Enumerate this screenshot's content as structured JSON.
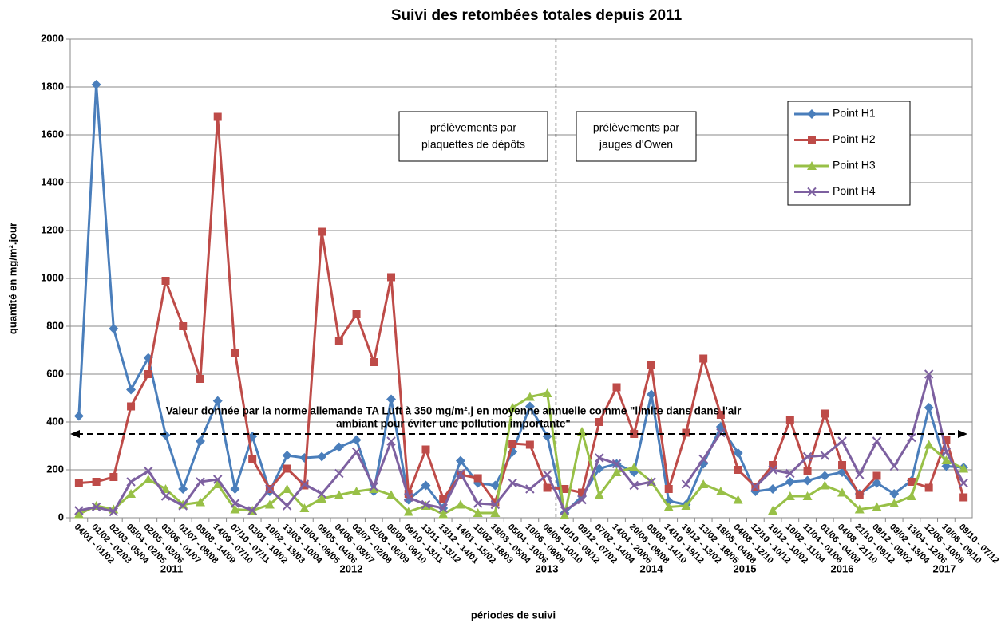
{
  "chart_data": {
    "type": "line",
    "title": "Suivi des retombées totales depuis 2011",
    "x_label": "périodes de suivi",
    "y_label": "quantité en mg/m².jour",
    "categories": [
      "04/01 - 01/02",
      "01/02 - 02/03",
      "02/03 - 05/04",
      "05/04 - 02/05",
      "02/05 - 03/06",
      "03/06 - 01/07",
      "01/07 - 08/08",
      "08/08 - 14/09",
      "14/09 - 07/10",
      "07/10 - 07/11",
      "03/01 - 10/02",
      "10/02 - 13/03",
      "13/03 - 10/04",
      "10/04 - 09/05",
      "09/05 - 04/06",
      "04/06 - 03/07",
      "03/07 - 02/08",
      "02/08 - 06/09",
      "06/09 - 09/10",
      "09/10 - 13/11",
      "13/11 - 13/12",
      "13/12 - 14/01",
      "14/01 - 15/02",
      "15/02 - 18/03",
      "18/03 - 05/04",
      "05/04 - 10/06",
      "10/06 - 09/08",
      "09/08 - 10/10",
      "10/10 - 09/12",
      "09/12 - 07/02",
      "07/02 - 14/04",
      "14/04 - 20/06",
      "20/06 - 08/08",
      "08/08 - 14/10",
      "14/10 - 19/12",
      "19/12 - 13/02",
      "13/02 - 18/05",
      "18/05 - 04/08",
      "04/08 - 12/10",
      "12/10 - 10/12",
      "10/12 - 10/02",
      "10/02 - 11/04",
      "11/04 - 01/06",
      "01/06 - 04/08",
      "04/08 - 21/10",
      "21/10 - 09/12",
      "09/12 - 09/02",
      "09/02 - 13/04",
      "13/04 - 12/06",
      "12/06 - 10/08",
      "10/08 - 09/10",
      "09/10 - 07/12"
    ],
    "series": [
      {
        "name": "Point H1",
        "color": "#4a7ebb",
        "marker": "diamond",
        "values": [
          425,
          1810,
          790,
          535,
          668,
          345,
          120,
          320,
          488,
          120,
          340,
          110,
          260,
          250,
          255,
          295,
          325,
          110,
          495,
          75,
          135,
          40,
          238,
          145,
          135,
          275,
          465,
          340,
          20,
          90,
          205,
          225,
          190,
          515,
          70,
          55,
          225,
          380,
          270,
          110,
          120,
          150,
          155,
          175,
          190,
          100,
          145,
          100,
          155,
          460,
          215,
          210
        ]
      },
      {
        "name": "Point H2",
        "color": "#be4b48",
        "marker": "square",
        "values": [
          145,
          150,
          170,
          465,
          600,
          990,
          800,
          580,
          1675,
          690,
          245,
          120,
          205,
          135,
          1195,
          740,
          850,
          650,
          1005,
          100,
          285,
          80,
          180,
          165,
          65,
          310,
          305,
          125,
          120,
          105,
          400,
          545,
          350,
          640,
          120,
          355,
          665,
          430,
          200,
          130,
          220,
          410,
          195,
          435,
          220,
          95,
          175,
          null,
          150,
          125,
          325,
          85
        ]
      },
      {
        "name": "Point H3",
        "color": "#98c047",
        "marker": "triangle",
        "values": [
          15,
          50,
          35,
          100,
          160,
          120,
          55,
          65,
          140,
          35,
          30,
          55,
          120,
          40,
          80,
          95,
          110,
          120,
          95,
          25,
          50,
          15,
          55,
          20,
          20,
          460,
          505,
          520,
          10,
          360,
          95,
          190,
          210,
          150,
          45,
          50,
          140,
          110,
          75,
          null,
          30,
          90,
          90,
          135,
          105,
          35,
          45,
          60,
          90,
          305,
          240,
          205
        ]
      },
      {
        "name": "Point H4",
        "color": "#7d60a0",
        "marker": "x",
        "values": [
          30,
          45,
          25,
          150,
          195,
          90,
          50,
          150,
          160,
          60,
          30,
          120,
          50,
          140,
          100,
          185,
          275,
          130,
          320,
          85,
          55,
          40,
          185,
          60,
          55,
          145,
          120,
          180,
          30,
          75,
          250,
          225,
          135,
          150,
          null,
          140,
          245,
          355,
          null,
          130,
          200,
          185,
          255,
          260,
          320,
          180,
          320,
          215,
          335,
          600,
          275,
          145
        ]
      }
    ],
    "year_labels": [
      "2011",
      "2012",
      "2013",
      "2014",
      "2015",
      "2016",
      "2017"
    ],
    "annotations": {
      "box_left": [
        "prélèvements par",
        "plaquettes de dépôts"
      ],
      "box_right": [
        "prélèvements par",
        "jauges d'Owen"
      ],
      "reference_text": [
        "Valeur donnée par la norme allemande TA Luft à 350 mg/m².j en moyenne annuelle comme \"limite dans dans l'air",
        "ambiant pour éviter une pollution importante\""
      ]
    },
    "reference_line": 350,
    "ylim": [
      0,
      2000
    ],
    "yticks": [
      0,
      200,
      400,
      600,
      800,
      1000,
      1200,
      1400,
      1600,
      1800,
      2000
    ],
    "grid": true,
    "legend": "upper right"
  }
}
